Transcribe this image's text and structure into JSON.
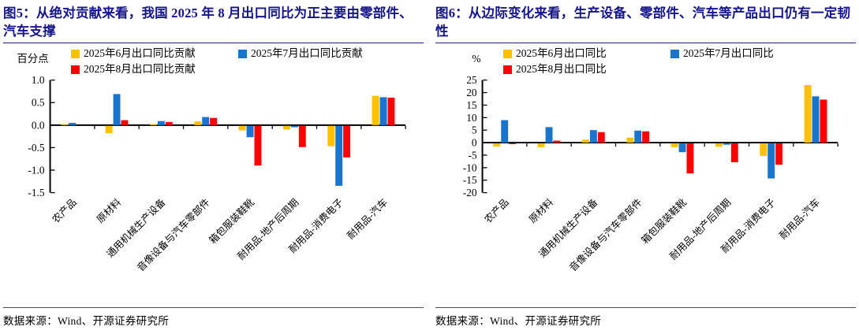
{
  "chart_data": [
    {
      "type": "bar",
      "title": "图5：从绝对贡献来看，我国 2025 年 8 月出口同比为正主要由零部件、汽车支撑",
      "unit_label": "百分点",
      "source": "数据来源：Wind、开源证券研究所",
      "grid": false,
      "legend_position": "top",
      "categories": [
        "农产品",
        "原材料",
        "通用机械生产设备",
        "音像设备与汽车零部件",
        "箱包服装鞋靴",
        "耐用品-地产后周期",
        "耐用品-消费电子",
        "耐用品-汽车"
      ],
      "series": [
        {
          "name": "2025年6月出口同比贡献",
          "color": "#FFC000",
          "values": [
            0.01,
            -0.16,
            0.02,
            0.08,
            -0.1,
            -0.08,
            -0.45,
            0.65
          ]
        },
        {
          "name": "2025年7月出口同比贡献",
          "color": "#1874CD",
          "values": [
            0.05,
            0.69,
            0.09,
            0.18,
            -0.25,
            -0.03,
            -1.33,
            0.62
          ]
        },
        {
          "name": "2025年8月出口同比贡献",
          "color": "#FF0000",
          "values": [
            0,
            0.11,
            0.07,
            0.16,
            -0.88,
            -0.47,
            -0.7,
            0.61
          ]
        }
      ],
      "ylim": [
        -1.5,
        1.0
      ],
      "yticks": [
        1.0,
        0.5,
        0.0,
        -0.5,
        -1.0,
        -1.5
      ],
      "ytick_labels": [
        "1.0",
        "0.5",
        "0.0",
        "-0.5",
        "-1.0",
        "-1.5"
      ]
    },
    {
      "type": "bar",
      "title": "图6：从边际变化来看，生产设备、零部件、汽车等产品出口仍有一定韧性",
      "unit_label": "%",
      "source": "数据来源：Wind、开源证券研究所",
      "grid": false,
      "legend_position": "top",
      "categories": [
        "农产品",
        "原材料",
        "通用机械生产设备",
        "音像设备与汽车零部件",
        "箱包服装鞋靴",
        "耐用品-地产后周期",
        "耐用品-消费电子",
        "耐用品-汽车"
      ],
      "series": [
        {
          "name": "2025年6月出口同比",
          "color": "#FFC000",
          "values": [
            -1.2,
            -1.5,
            1.2,
            2.0,
            -1.5,
            -1.3,
            -5.0,
            23.0
          ]
        },
        {
          "name": "2025年7月出口同比",
          "color": "#1874CD",
          "values": [
            9.0,
            6.2,
            5.0,
            4.8,
            -3.5,
            -0.5,
            -14.0,
            18.5
          ]
        },
        {
          "name": "2025年8月出口同比",
          "color": "#FF0000",
          "values": [
            -0.3,
            0.8,
            4.2,
            4.5,
            -12.0,
            -7.5,
            -8.5,
            17.2
          ]
        }
      ],
      "ylim": [
        -20,
        25
      ],
      "yticks": [
        25,
        20,
        15,
        10,
        5,
        0,
        -5,
        -10,
        -15,
        -20
      ],
      "ytick_labels": [
        "25",
        "20",
        "15",
        "10",
        "5",
        "0",
        "-5",
        "-10",
        "-15",
        "-20"
      ]
    }
  ]
}
